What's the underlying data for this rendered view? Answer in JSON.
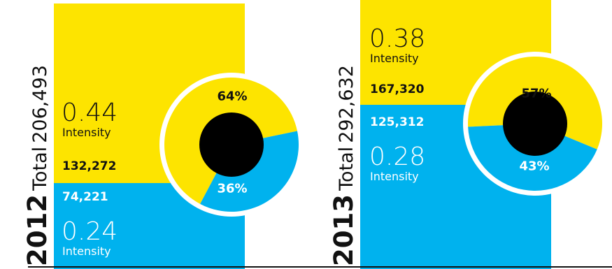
{
  "colors": {
    "yellow": "#fde400",
    "blue": "#00b2ee",
    "black": "#000000",
    "white": "#ffffff",
    "text_dark": "#111111"
  },
  "chart_data": [
    {
      "type": "bar",
      "year": "2012",
      "total_label": "Total",
      "total_value": "206,493",
      "segments": [
        {
          "count_label": "132,272",
          "count": 132272,
          "intensity": "0.44",
          "intensity_label": "Intensity",
          "color": "#fde400"
        },
        {
          "count_label": "74,221",
          "count": 74221,
          "intensity": "0.24",
          "intensity_label": "Intensity",
          "color": "#00b2ee"
        }
      ],
      "pie": [
        {
          "label": "64%",
          "value": 64,
          "color": "#fde400"
        },
        {
          "label": "36%",
          "value": 36,
          "color": "#00b2ee"
        }
      ]
    },
    {
      "type": "bar",
      "year": "2013",
      "total_label": "Total",
      "total_value": "292,632",
      "segments": [
        {
          "count_label": "167,320",
          "count": 167320,
          "intensity": "0.38",
          "intensity_label": "Intensity",
          "color": "#fde400"
        },
        {
          "count_label": "125,312",
          "count": 125312,
          "intensity": "0.28",
          "intensity_label": "Intensity",
          "color": "#00b2ee"
        }
      ],
      "pie": [
        {
          "label": "57%",
          "value": 57,
          "color": "#fde400"
        },
        {
          "label": "43%",
          "value": 43,
          "color": "#00b2ee"
        }
      ]
    }
  ]
}
